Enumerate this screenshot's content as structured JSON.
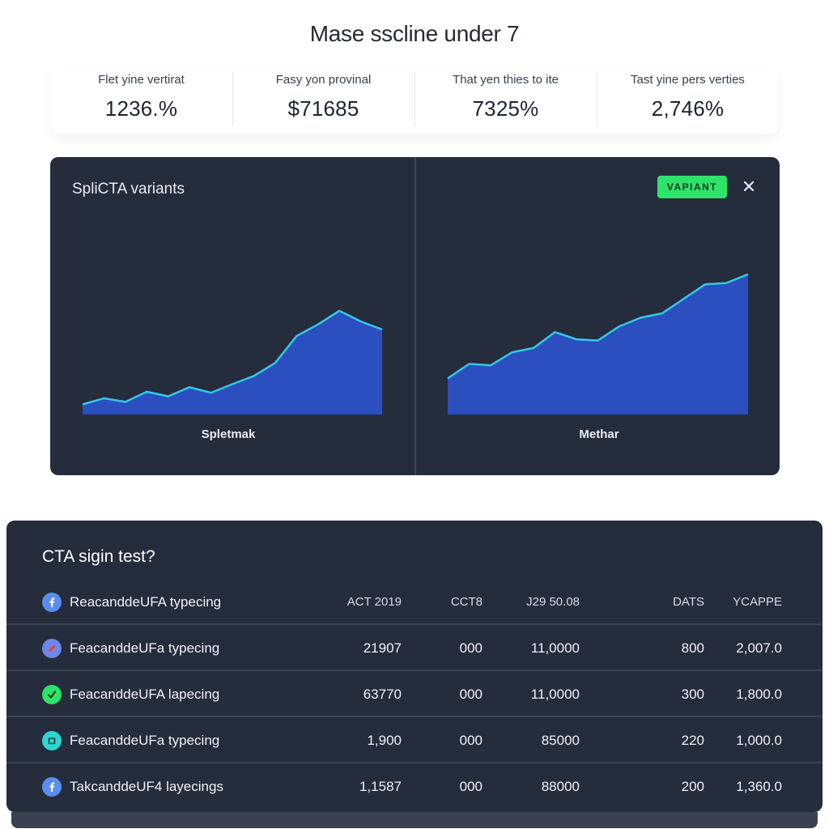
{
  "page": {
    "title": "Mase sscline under 7"
  },
  "kpis": [
    {
      "label": "Flet yine vertirat",
      "value": "1236.%"
    },
    {
      "label": "Fasy yon provinal",
      "value": "$71685"
    },
    {
      "label": "That yen thies to ite",
      "value": "7325%"
    },
    {
      "label": "Tast yine pers verties",
      "value": "2,746%"
    }
  ],
  "chart_panel": {
    "title": "SpliCTA variants",
    "badge": "VAPIANT",
    "close_icon": "close-icon",
    "colors": {
      "fill": "#2b4fbf",
      "line": "#34c9e8",
      "background": "#252c3b",
      "badge": "#2fe36a"
    }
  },
  "chart_data": [
    {
      "type": "area",
      "caption": "Spletmak",
      "values": [
        2,
        3.2,
        2.5,
        4.5,
        3.6,
        5.4,
        4.3,
        6,
        7.6,
        10.2,
        15.5,
        17.8,
        20.5,
        18.4,
        16.8
      ],
      "ylim": [
        0,
        40
      ]
    },
    {
      "type": "area",
      "caption": "Methar",
      "values": [
        12.5,
        17.5,
        17.0,
        21.5,
        23.0,
        28.5,
        26.0,
        25.6,
        30.5,
        33.5,
        35.0,
        40.0,
        45.0,
        45.5,
        48.5
      ],
      "ylim": [
        0,
        70
      ]
    }
  ],
  "table": {
    "title": "CTA sigin test?",
    "header": {
      "icon": "facebook-icon",
      "icon_color": "#5b8def",
      "name": "ReacanddeUFA typecing",
      "cols": [
        "ACT 2019",
        "CCT8",
        "J29 50.08",
        "DATS",
        "YCAPPE"
      ]
    },
    "rows": [
      {
        "icon": "pencil-icon",
        "icon_color": "#6f86e6",
        "name": "FeacanddeUFa typecing",
        "cols": [
          "21907",
          "000",
          "11,0000",
          "800",
          "2,007.0"
        ]
      },
      {
        "icon": "check-icon",
        "icon_color": "#2fe36a",
        "name": "FeacanddeUFA lapecing",
        "cols": [
          "63770",
          "000",
          "11,0000",
          "300",
          "1,800.0"
        ]
      },
      {
        "icon": "copy-icon",
        "icon_color": "#2ed6d0",
        "name": "FeacanddeUFa typecing",
        "cols": [
          "1,900",
          "000",
          "85000",
          "220",
          "1,000.0"
        ]
      },
      {
        "icon": "facebook-icon",
        "icon_color": "#5b8def",
        "name": "TakcanddeUF4 layecings",
        "cols": [
          "1,1587",
          "000",
          "88000",
          "200",
          "1,360.0"
        ]
      }
    ]
  }
}
